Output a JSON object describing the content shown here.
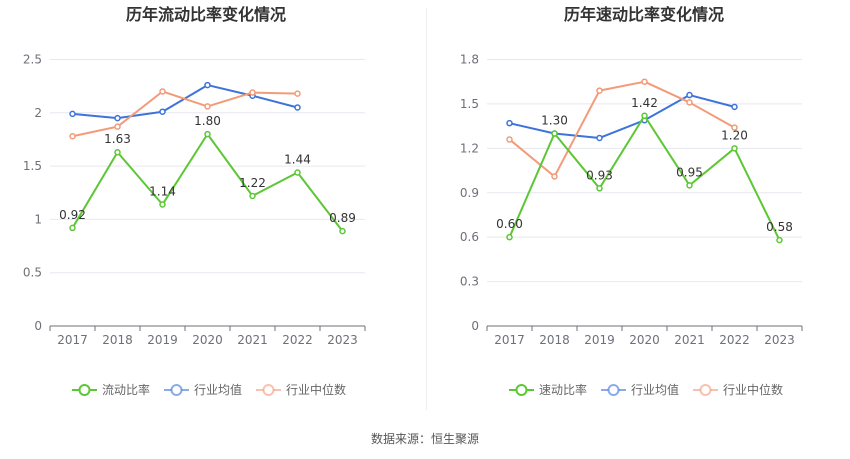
{
  "footer": {
    "source": "数据来源：恒生聚源"
  },
  "colors": {
    "main": "#5cc734",
    "avg": "#3d73db",
    "median": "#f39a78",
    "grid": "#e6e8ef",
    "axis": "#6e7079",
    "title": "#333333",
    "legend_text": "#666666"
  },
  "chart_data": [
    {
      "type": "line",
      "title": "历年流动比率变化情况",
      "x": [
        "2017",
        "2018",
        "2019",
        "2020",
        "2021",
        "2022",
        "2023"
      ],
      "ylim": [
        0,
        2.5
      ],
      "yticks": [
        "0",
        "0.5",
        "1",
        "1.5",
        "2",
        "2.5"
      ],
      "grid": true,
      "legend_position": "bottom",
      "series": [
        {
          "name": "流动比率",
          "values": [
            0.92,
            1.63,
            1.14,
            1.8,
            1.22,
            1.44,
            0.89
          ],
          "labels": [
            "0.92",
            "1.63",
            "1.14",
            "1.80",
            "1.22",
            "1.44",
            "0.89"
          ]
        },
        {
          "name": "行业均值",
          "values": [
            1.99,
            1.95,
            2.01,
            2.26,
            2.16,
            2.05,
            null
          ]
        },
        {
          "name": "行业中位数",
          "values": [
            1.78,
            1.87,
            2.2,
            2.06,
            2.19,
            2.18,
            null
          ]
        }
      ]
    },
    {
      "type": "line",
      "title": "历年速动比率变化情况",
      "x": [
        "2017",
        "2018",
        "2019",
        "2020",
        "2021",
        "2022",
        "2023"
      ],
      "ylim": [
        0,
        1.8
      ],
      "yticks": [
        "0",
        "0.3",
        "0.6",
        "0.9",
        "1.2",
        "1.5",
        "1.8"
      ],
      "grid": true,
      "legend_position": "bottom",
      "series": [
        {
          "name": "速动比率",
          "values": [
            0.6,
            1.3,
            0.93,
            1.42,
            0.95,
            1.2,
            0.58
          ],
          "labels": [
            "0.60",
            "1.30",
            "0.93",
            "1.42",
            "0.95",
            "1.20",
            "0.58"
          ]
        },
        {
          "name": "行业均值",
          "values": [
            1.37,
            1.3,
            1.27,
            1.39,
            1.56,
            1.48,
            null
          ]
        },
        {
          "name": "行业中位数",
          "values": [
            1.26,
            1.01,
            1.59,
            1.65,
            1.51,
            1.34,
            null
          ]
        }
      ]
    }
  ]
}
